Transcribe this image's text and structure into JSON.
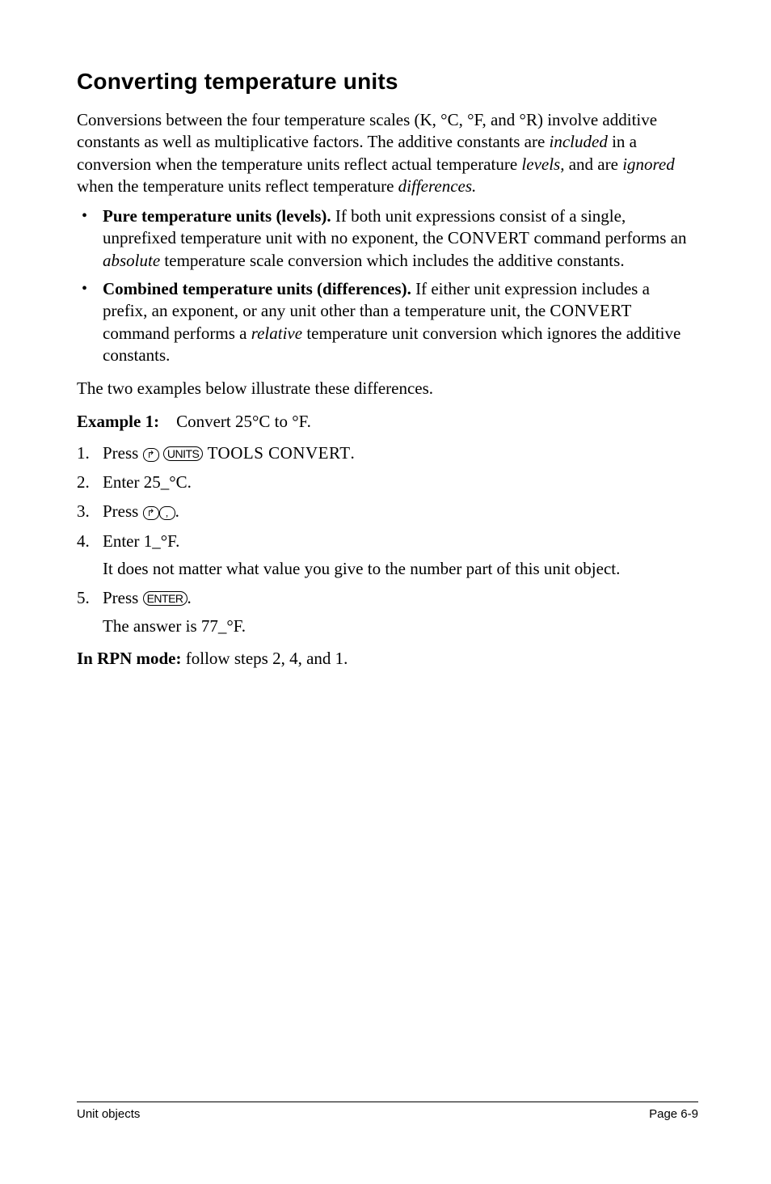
{
  "heading": "Converting temperature units",
  "intro": {
    "t1": "Conversions between the four temperature scales (K, °C, °F, and °R) involve additive constants as well as multiplicative factors. The additive constants are ",
    "i1": "included",
    "t2": " in a conversion when the temperature units reflect actual temperature ",
    "i2": "levels,",
    "t3": " and are ",
    "i3": "ignored",
    "t4": " when the temperature units reflect temperature ",
    "i4": "differences."
  },
  "bullets": [
    {
      "lead": "Pure temperature units (levels).",
      "t1": " If both unit expressions consist of a single, unprefixed temperature unit with no exponent, the ",
      "sc1": "CONVERT",
      "t2": " command performs an ",
      "i1": "absolute",
      "t3": " temperature scale conversion which includes the additive constants."
    },
    {
      "lead": "Combined temperature units (differences).",
      "t1": " If either unit expression includes a prefix, an exponent, or any unit other than a temperature unit, the ",
      "sc1": "CONVERT",
      "t2": " command performs a ",
      "i1": "relative",
      "t3": " temperature unit conversion which ignores the additive constants."
    }
  ],
  "illustrate": "The two examples below illustrate these differences.",
  "example": {
    "label": "Example 1:",
    "sep": "    ",
    "text": "Convert 25°C to °F."
  },
  "steps": [
    {
      "pre": "Press ",
      "k1": "↱",
      "sep1": " ",
      "k2": "UNITS",
      "post": " ",
      "sc": "TOOLS CONVERT",
      "tail": "."
    },
    {
      "text": "Enter 25_°C."
    },
    {
      "pre": "Press ",
      "k1": "↱",
      "k2": ",",
      "post": "."
    },
    {
      "text": "Enter 1_°F.",
      "note": "It does not matter what value you give to the number part of this unit object."
    },
    {
      "pre": "Press ",
      "k1": "ENTER",
      "post": ".",
      "note": "The answer is 77_°F."
    }
  ],
  "rpn": {
    "lead": "In RPN mode:",
    "text": " follow steps 2, 4, and 1."
  },
  "footer": {
    "left": "Unit objects",
    "right": "Page 6-9"
  }
}
